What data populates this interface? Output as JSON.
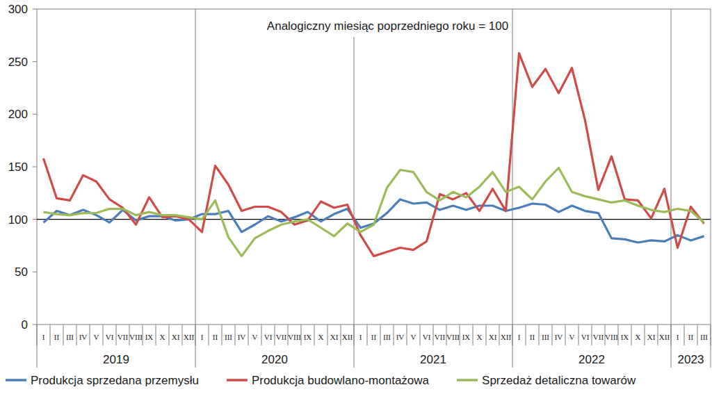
{
  "chart_data": {
    "type": "line",
    "annotation": "Analogiczny miesiąc poprzedniego roku = 100",
    "categories": [
      "I",
      "II",
      "III",
      "IV",
      "V",
      "VI",
      "VII",
      "VIII",
      "IX",
      "X",
      "XI",
      "XII",
      "I",
      "II",
      "III",
      "IV",
      "V",
      "VI",
      "VII",
      "VIII",
      "IX",
      "X",
      "XI",
      "XII",
      "I",
      "II",
      "III",
      "IV",
      "V",
      "VI",
      "VII",
      "VIII",
      "IX",
      "X",
      "XI",
      "XII",
      "I",
      "II",
      "III",
      "IV",
      "V",
      "VI",
      "VII",
      "VIII",
      "IX",
      "X",
      "XI",
      "XII",
      "I",
      "II",
      "III"
    ],
    "years": [
      "2019",
      "2020",
      "2021",
      "2022",
      "2023"
    ],
    "baseline": 100,
    "ylim": [
      0,
      300
    ],
    "yticks": [
      0,
      50,
      100,
      150,
      200,
      250,
      300
    ],
    "grid": false,
    "legend": "bottom",
    "series": [
      {
        "name": "Produkcja sprzedana przemysłu",
        "color": "#4a7ebb",
        "values": [
          97,
          108,
          104,
          109,
          104,
          97,
          109,
          99,
          103,
          103,
          99,
          100,
          105,
          105,
          108,
          88,
          95,
          103,
          98,
          102,
          107,
          98,
          105,
          110,
          92,
          96,
          106,
          119,
          115,
          116,
          109,
          113,
          109,
          113,
          113,
          108,
          111,
          115,
          114,
          107,
          113,
          108,
          106,
          82,
          81,
          78,
          80,
          79,
          85,
          80,
          84
        ]
      },
      {
        "name": "Produkcja budowlano-montażowa",
        "color": "#cf4b47",
        "values": [
          158,
          120,
          118,
          142,
          136,
          119,
          111,
          95,
          121,
          102,
          103,
          100,
          88,
          151,
          133,
          108,
          112,
          112,
          107,
          95,
          99,
          117,
          111,
          114,
          85,
          65,
          69,
          73,
          71,
          79,
          124,
          119,
          125,
          108,
          129,
          108,
          258,
          226,
          243,
          220,
          244,
          194,
          128,
          160,
          119,
          118,
          101,
          129,
          73,
          112,
          96
        ]
      },
      {
        "name": "Sprzedaż detaliczna towarów",
        "color": "#9bbb59",
        "values": [
          107,
          105,
          104,
          106,
          106,
          110,
          110,
          104,
          107,
          104,
          104,
          102,
          100,
          118,
          83,
          65,
          82,
          89,
          95,
          98,
          100,
          92,
          84,
          96,
          88,
          95,
          130,
          147,
          145,
          126,
          118,
          126,
          121,
          131,
          145,
          126,
          131,
          119,
          136,
          149,
          126,
          122,
          119,
          116,
          118,
          113,
          109,
          107,
          110,
          108,
          97
        ]
      }
    ]
  }
}
